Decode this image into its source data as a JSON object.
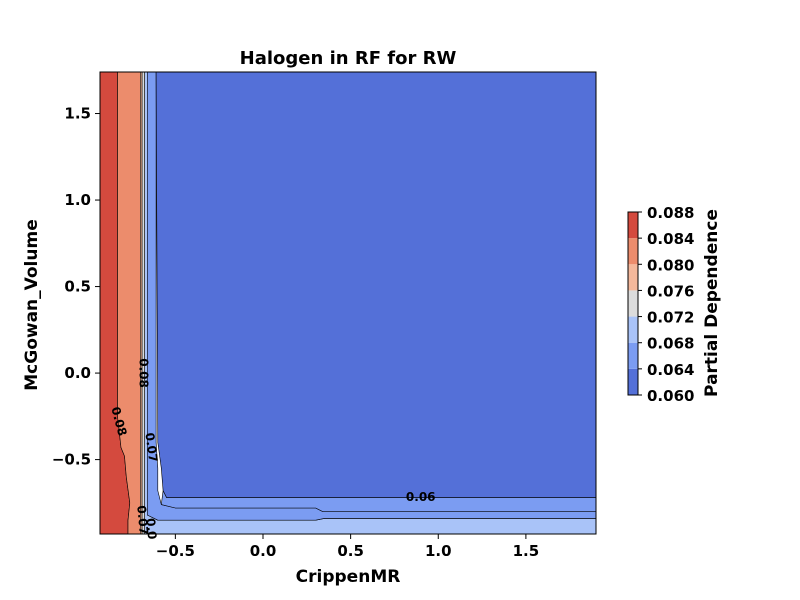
{
  "chart_data": {
    "type": "contour",
    "title": "Halogen in RF for RW",
    "xlabel": "CrippenMR",
    "ylabel": "McGowan_Volume",
    "xlim": [
      -0.93,
      1.9
    ],
    "ylim": [
      -0.93,
      1.74
    ],
    "x_ticks": [
      -0.5,
      0.0,
      0.5,
      1.0,
      1.5
    ],
    "x_tick_labels": [
      "−0.5",
      "0.0",
      "0.5",
      "1.0",
      "1.5"
    ],
    "y_ticks": [
      -0.5,
      0.0,
      0.5,
      1.0,
      1.5
    ],
    "y_tick_labels": [
      "−0.5",
      "0.0",
      "0.5",
      "1.0",
      "1.5"
    ],
    "colorbar": {
      "label": "Partial Dependence",
      "levels": [
        0.06,
        0.064,
        0.068,
        0.072,
        0.076,
        0.08,
        0.084,
        0.088
      ],
      "tick_labels": [
        "0.060",
        "0.064",
        "0.068",
        "0.072",
        "0.076",
        "0.080",
        "0.084",
        "0.088"
      ],
      "colors": [
        "#5470d8",
        "#7b9cf2",
        "#a9c3f8",
        "#dcdcdc",
        "#f4b89b",
        "#ec8c6c",
        "#d44a3e"
      ]
    },
    "contour_labels": [
      {
        "text": "0.08",
        "x": -0.825,
        "y": -0.28,
        "rotation": 75
      },
      {
        "text": "0.08",
        "x": -0.685,
        "y": -0.0,
        "rotation": 90
      },
      {
        "text": "0.07",
        "x": -0.64,
        "y": -0.43,
        "rotation": 82
      },
      {
        "text": "0.06",
        "x": 0.9,
        "y": -0.72,
        "rotation": 0
      },
      {
        "text": "0.07",
        "x": -0.69,
        "y": -0.85,
        "rotation": 85
      },
      {
        "text": "0.0",
        "x": -0.64,
        "y": -0.9,
        "rotation": 85
      }
    ],
    "regions": [
      {
        "level_index": 6,
        "polygon": [
          [
            -0.93,
            1.74
          ],
          [
            -0.83,
            1.74
          ],
          [
            -0.83,
            -0.25
          ],
          [
            -0.81,
            -0.43
          ],
          [
            -0.79,
            -0.48
          ],
          [
            -0.78,
            -0.6
          ],
          [
            -0.76,
            -0.75
          ],
          [
            -0.77,
            -0.85
          ],
          [
            -0.77,
            -0.93
          ],
          [
            -0.93,
            -0.93
          ]
        ]
      },
      {
        "level_index": 5,
        "polygon": [
          [
            -0.83,
            1.74
          ],
          [
            -0.7,
            1.74
          ],
          [
            -0.7,
            -0.7
          ],
          [
            -0.7,
            -0.93
          ],
          [
            -0.77,
            -0.93
          ],
          [
            -0.77,
            -0.85
          ],
          [
            -0.76,
            -0.75
          ],
          [
            -0.78,
            -0.6
          ],
          [
            -0.79,
            -0.48
          ],
          [
            -0.81,
            -0.43
          ],
          [
            -0.83,
            -0.25
          ]
        ]
      },
      {
        "level_index": 4,
        "polygon": [
          [
            -0.7,
            1.74
          ],
          [
            -0.69,
            1.74
          ],
          [
            -0.69,
            -0.93
          ],
          [
            -0.7,
            -0.93
          ]
        ]
      },
      {
        "level_index": 3,
        "polygon": [
          [
            -0.69,
            1.74
          ],
          [
            -0.675,
            1.74
          ],
          [
            -0.675,
            -0.93
          ],
          [
            -0.69,
            -0.93
          ]
        ]
      },
      {
        "level_index": 2,
        "polygon": [
          [
            -0.675,
            1.74
          ],
          [
            -0.66,
            1.74
          ],
          [
            -0.66,
            -0.82
          ],
          [
            -0.6,
            -0.85
          ],
          [
            0.3,
            -0.85
          ],
          [
            0.35,
            -0.84
          ],
          [
            1.9,
            -0.84
          ],
          [
            1.9,
            -0.93
          ],
          [
            -0.675,
            -0.93
          ]
        ]
      },
      {
        "level_index": 1,
        "polygon": [
          [
            -0.66,
            1.74
          ],
          [
            -0.61,
            1.74
          ],
          [
            -0.61,
            -0.4
          ],
          [
            -0.6,
            -0.55
          ],
          [
            -0.6,
            -0.68
          ],
          [
            -0.58,
            -0.76
          ],
          [
            -0.5,
            -0.78
          ],
          [
            0.3,
            -0.78
          ],
          [
            0.34,
            -0.8
          ],
          [
            1.9,
            -0.8
          ],
          [
            1.9,
            -0.84
          ],
          [
            0.35,
            -0.84
          ],
          [
            0.3,
            -0.85
          ],
          [
            -0.6,
            -0.85
          ],
          [
            -0.66,
            -0.82
          ]
        ]
      },
      {
        "level_index": 0,
        "polygon": [
          [
            -0.61,
            1.74
          ],
          [
            1.9,
            1.74
          ],
          [
            1.9,
            -0.72
          ],
          [
            -0.55,
            -0.72
          ],
          [
            -0.57,
            -0.68
          ],
          [
            -0.58,
            -0.55
          ],
          [
            -0.6,
            -0.4
          ]
        ]
      },
      {
        "level_index": 1,
        "polygon": [
          [
            -0.55,
            -0.72
          ],
          [
            1.9,
            -0.72
          ],
          [
            1.9,
            -0.8
          ],
          [
            0.34,
            -0.8
          ],
          [
            0.3,
            -0.78
          ],
          [
            -0.5,
            -0.78
          ],
          [
            -0.58,
            -0.76
          ],
          [
            -0.57,
            -0.68
          ]
        ]
      }
    ]
  }
}
